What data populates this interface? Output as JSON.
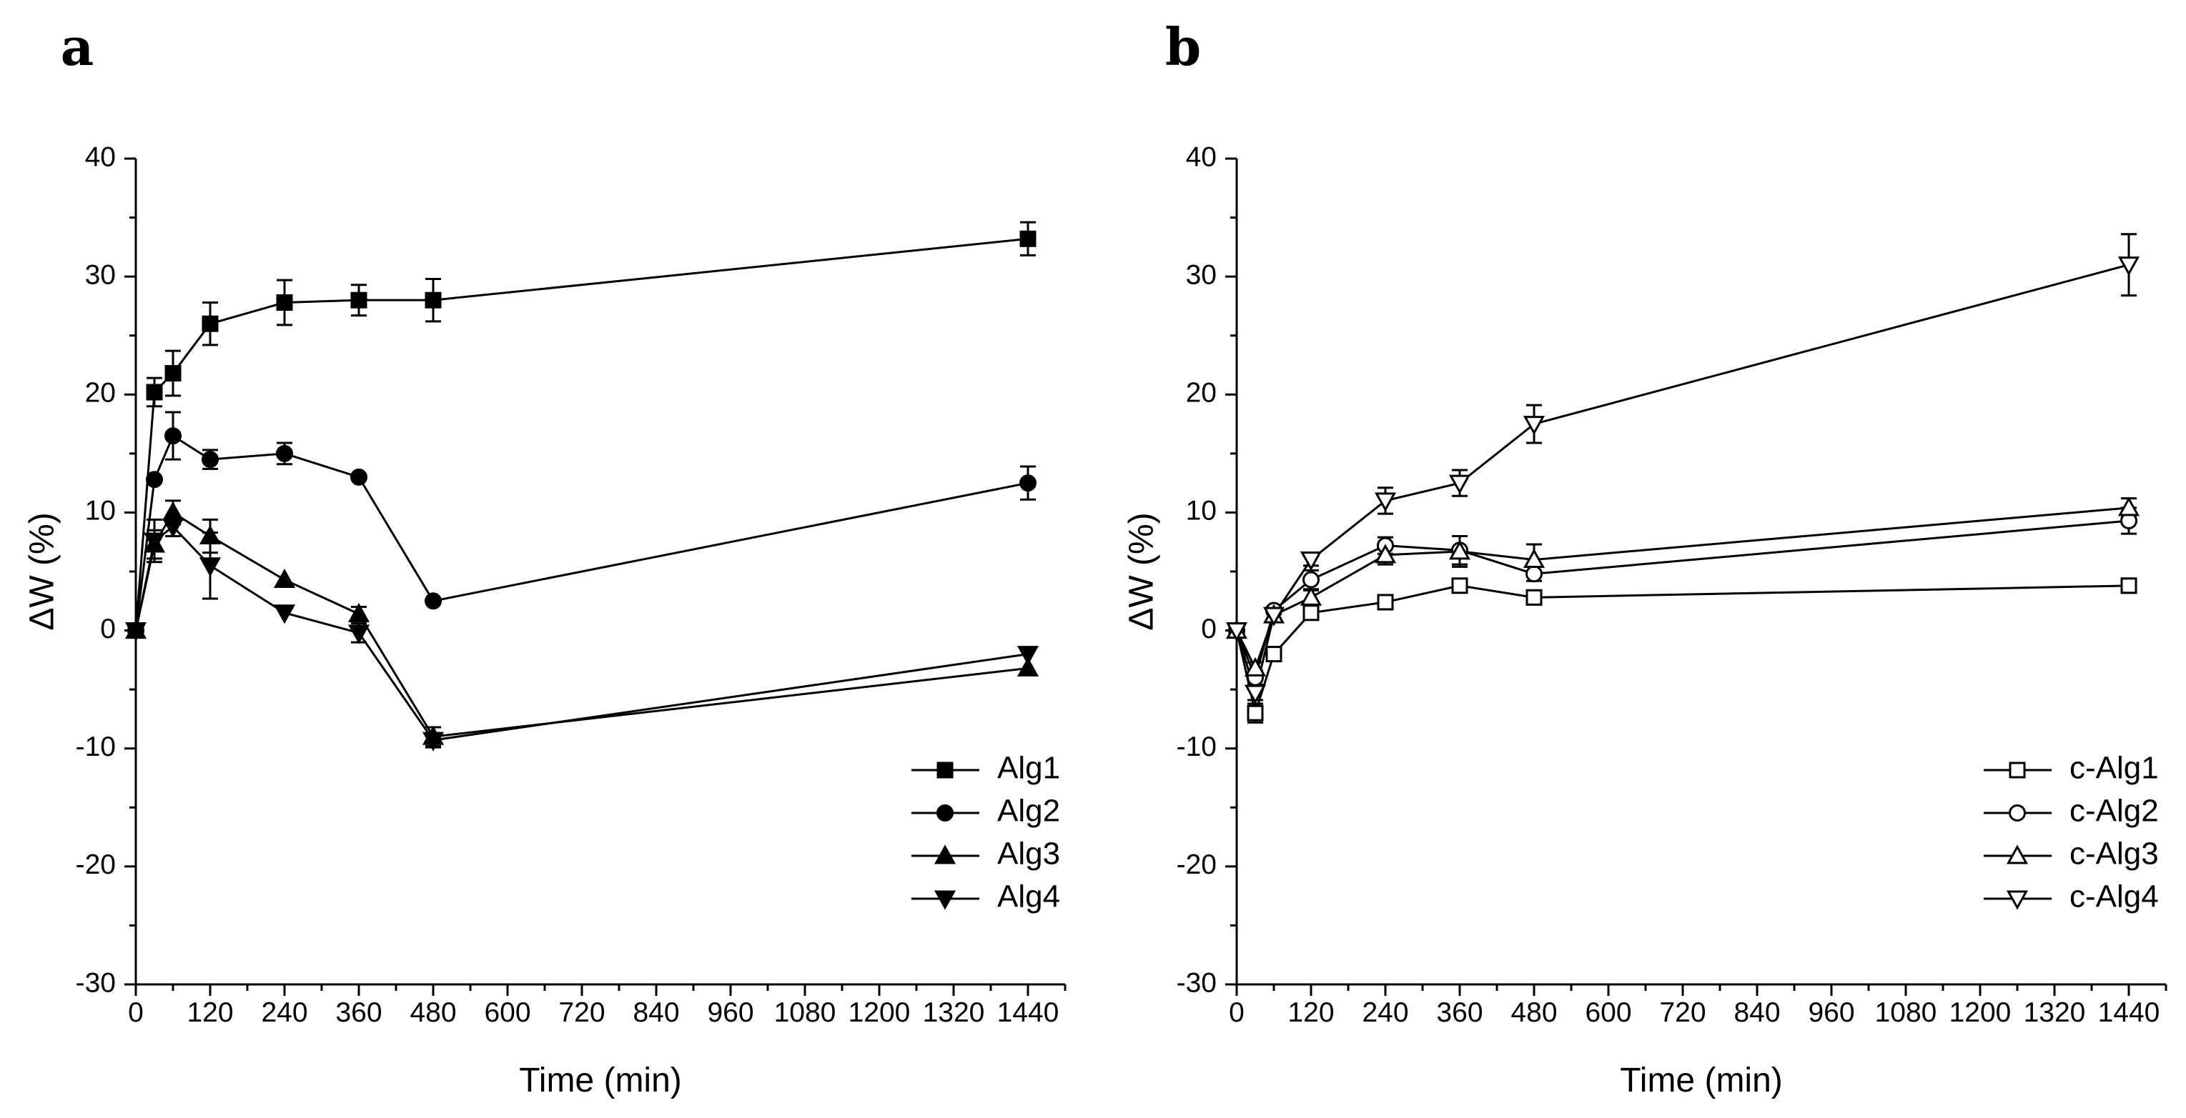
{
  "chart_data": [
    {
      "type": "line",
      "panel_label": "a",
      "xlabel": "Time (min)",
      "ylabel": "ΔW (%)",
      "xlim": [
        0,
        1500
      ],
      "ylim": [
        -30,
        40
      ],
      "xticks": [
        0,
        120,
        240,
        360,
        480,
        600,
        720,
        840,
        960,
        1080,
        1200,
        1320,
        1440
      ],
      "yticks": [
        -30,
        -20,
        -10,
        0,
        10,
        20,
        30,
        40
      ],
      "legend_position": "bottom-right",
      "series": [
        {
          "name": "Alg1",
          "marker": "square",
          "filled": true,
          "x": [
            0,
            30,
            60,
            120,
            240,
            360,
            480,
            1440
          ],
          "y": [
            0,
            20.2,
            21.8,
            26.0,
            27.8,
            28.0,
            28.0,
            33.2
          ],
          "err": [
            0,
            1.2,
            1.9,
            1.8,
            1.9,
            1.3,
            1.8,
            1.4
          ]
        },
        {
          "name": "Alg2",
          "marker": "circle",
          "filled": true,
          "x": [
            0,
            30,
            60,
            120,
            240,
            360,
            480,
            1440
          ],
          "y": [
            0,
            12.8,
            16.5,
            14.5,
            15.0,
            13.0,
            2.5,
            12.5
          ],
          "err": [
            0,
            0,
            2.0,
            0.8,
            0.9,
            0,
            0,
            1.4
          ]
        },
        {
          "name": "Alg3",
          "marker": "triangle-up",
          "filled": true,
          "x": [
            0,
            30,
            60,
            120,
            240,
            360,
            480,
            1440
          ],
          "y": [
            0,
            7.3,
            10.0,
            8.0,
            4.3,
            1.4,
            -9.0,
            -3.2
          ],
          "err": [
            0,
            1.2,
            1.0,
            1.4,
            0,
            0.6,
            0.8,
            0
          ]
        },
        {
          "name": "Alg4",
          "marker": "triangle-down",
          "filled": true,
          "x": [
            0,
            30,
            60,
            120,
            240,
            360,
            480,
            1440
          ],
          "y": [
            0,
            7.6,
            8.8,
            5.5,
            1.5,
            -0.2,
            -9.3,
            -2.0
          ],
          "err": [
            0,
            1.8,
            0.8,
            2.8,
            0,
            0.8,
            0.6,
            0
          ]
        }
      ]
    },
    {
      "type": "line",
      "panel_label": "b",
      "xlabel": "Time (min)",
      "ylabel": "ΔW (%)",
      "xlim": [
        0,
        1500
      ],
      "ylim": [
        -30,
        40
      ],
      "xticks": [
        0,
        120,
        240,
        360,
        480,
        600,
        720,
        840,
        960,
        1080,
        1200,
        1320,
        1440
      ],
      "yticks": [
        -30,
        -20,
        -10,
        0,
        10,
        20,
        30,
        40
      ],
      "legend_position": "bottom-right",
      "series": [
        {
          "name": "c-Alg1",
          "marker": "square",
          "filled": false,
          "x": [
            0,
            30,
            60,
            120,
            240,
            360,
            480,
            1440
          ],
          "y": [
            0,
            -7.0,
            -2.0,
            1.5,
            2.4,
            3.8,
            2.8,
            3.8
          ],
          "err": [
            0,
            0.8,
            0.5,
            0.5,
            0.6,
            0.5,
            0.6,
            0.6
          ]
        },
        {
          "name": "c-Alg2",
          "marker": "circle",
          "filled": false,
          "x": [
            0,
            30,
            60,
            120,
            240,
            360,
            480,
            1440
          ],
          "y": [
            0,
            -4.0,
            1.7,
            4.3,
            7.2,
            6.8,
            4.8,
            9.3
          ],
          "err": [
            0,
            0.6,
            0.3,
            0.8,
            0.7,
            1.2,
            0.6,
            1.1
          ]
        },
        {
          "name": "c-Alg3",
          "marker": "triangle-up",
          "filled": false,
          "x": [
            0,
            30,
            60,
            120,
            240,
            360,
            480,
            1440
          ],
          "y": [
            0,
            -3.2,
            1.3,
            2.8,
            6.4,
            6.7,
            6.0,
            10.4
          ],
          "err": [
            0,
            0.5,
            0.3,
            0.6,
            0.8,
            1.3,
            1.3,
            0.8
          ]
        },
        {
          "name": "c-Alg4",
          "marker": "triangle-down",
          "filled": false,
          "x": [
            0,
            30,
            60,
            120,
            240,
            360,
            480,
            1440
          ],
          "y": [
            0,
            -5.3,
            1.3,
            6.0,
            11.0,
            12.5,
            17.5,
            31.0
          ],
          "err": [
            0,
            0.6,
            0.3,
            0.5,
            1.1,
            1.1,
            1.6,
            2.6
          ]
        }
      ]
    }
  ]
}
